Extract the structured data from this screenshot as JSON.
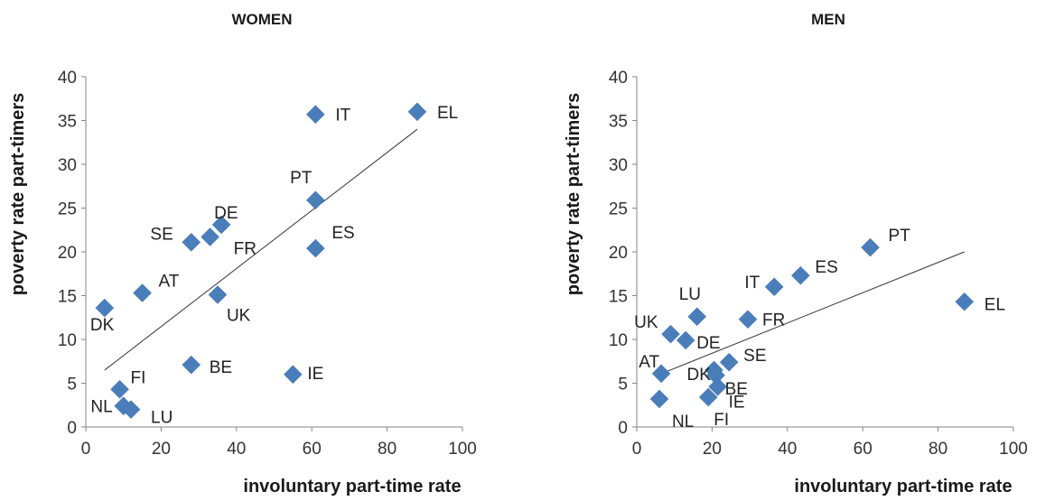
{
  "chart_data": [
    {
      "type": "scatter",
      "title": "WOMEN",
      "xlabel": "involuntary part-time rate",
      "ylabel": "poverty rate part-timers",
      "xlim": [
        0,
        100
      ],
      "ylim": [
        0,
        40
      ],
      "xticks": [
        "0",
        "20",
        "40",
        "60",
        "80",
        "100"
      ],
      "yticks": [
        "0",
        "5",
        "10",
        "15",
        "20",
        "25",
        "30",
        "35",
        "40"
      ],
      "grid": false,
      "marker_color": "#4a7ebb",
      "points": [
        {
          "label": "IT",
          "x": 61,
          "y": 35.7
        },
        {
          "label": "EL",
          "x": 88,
          "y": 36.0
        },
        {
          "label": "PT",
          "x": 61,
          "y": 25.9
        },
        {
          "label": "DE",
          "x": 36,
          "y": 23.1
        },
        {
          "label": "SE",
          "x": 28,
          "y": 21.1
        },
        {
          "label": "FR",
          "x": 33,
          "y": 21.7
        },
        {
          "label": "ES",
          "x": 61,
          "y": 20.4
        },
        {
          "label": "AT",
          "x": 15,
          "y": 15.3
        },
        {
          "label": "UK",
          "x": 35,
          "y": 15.1
        },
        {
          "label": "DK",
          "x": 5,
          "y": 13.6
        },
        {
          "label": "BE",
          "x": 28,
          "y": 7.1
        },
        {
          "label": "IE",
          "x": 55,
          "y": 6.0
        },
        {
          "label": "FI",
          "x": 9,
          "y": 4.3
        },
        {
          "label": "NL",
          "x": 10,
          "y": 2.4
        },
        {
          "label": "LU",
          "x": 12,
          "y": 2.0
        }
      ],
      "trendline": {
        "x": [
          5,
          88
        ],
        "y": [
          6.5,
          34
        ]
      }
    },
    {
      "type": "scatter",
      "title": "MEN",
      "xlabel": "involuntary part-time rate",
      "ylabel": "poverty rate part-timers",
      "xlim": [
        0,
        100
      ],
      "ylim": [
        0,
        40
      ],
      "xticks": [
        "0",
        "20",
        "40",
        "60",
        "80",
        "100"
      ],
      "yticks": [
        "0",
        "5",
        "10",
        "15",
        "20",
        "25",
        "30",
        "35",
        "40"
      ],
      "grid": false,
      "marker_color": "#4a7ebb",
      "points": [
        {
          "label": "PT",
          "x": 62,
          "y": 20.5
        },
        {
          "label": "ES",
          "x": 43.5,
          "y": 17.3
        },
        {
          "label": "IT",
          "x": 36.5,
          "y": 16.0
        },
        {
          "label": "EL",
          "x": 87,
          "y": 14.3
        },
        {
          "label": "LU",
          "x": 16,
          "y": 12.6
        },
        {
          "label": "FR",
          "x": 29.5,
          "y": 12.3
        },
        {
          "label": "UK",
          "x": 9,
          "y": 10.6
        },
        {
          "label": "DE",
          "x": 13,
          "y": 9.9
        },
        {
          "label": "AT",
          "x": 6.5,
          "y": 6.1
        },
        {
          "label": "SE",
          "x": 24.5,
          "y": 7.4
        },
        {
          "label": "DK",
          "x": 20.5,
          "y": 6.5
        },
        {
          "label": "BE",
          "x": 21,
          "y": 5.9
        },
        {
          "label": "IE",
          "x": 21.5,
          "y": 4.6
        },
        {
          "label": "FI",
          "x": 19,
          "y": 3.4
        },
        {
          "label": "NL",
          "x": 6,
          "y": 3.2
        }
      ],
      "trendline": {
        "x": [
          6,
          87
        ],
        "y": [
          6.0,
          20.0
        ]
      }
    }
  ]
}
